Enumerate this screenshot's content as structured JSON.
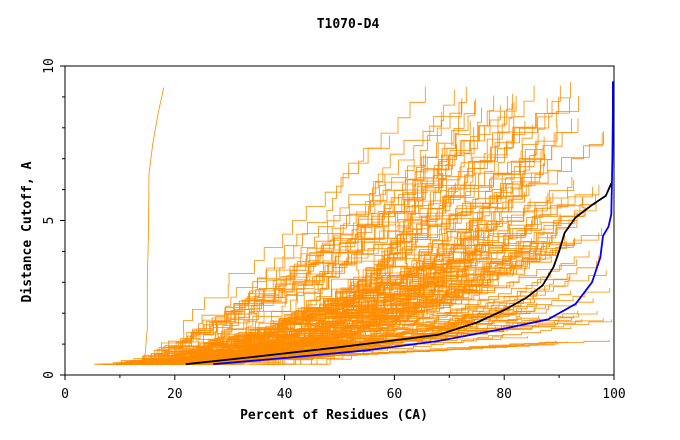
{
  "chart_data": {
    "type": "line",
    "title": "T1070-D4",
    "xlabel": "Percent of Residues (CA)",
    "ylabel": "Distance Cutoff, A",
    "xlim": [
      0,
      100
    ],
    "ylim": [
      0,
      10
    ],
    "x_ticks": [
      "0",
      "20",
      "40",
      "60",
      "80",
      "100"
    ],
    "y_ticks": [
      "0",
      "5",
      "10"
    ],
    "grid": false,
    "legend": "none",
    "colors": {
      "models": "#ff8c00",
      "highlight_blue": "#0000ff",
      "highlight_black": "#000000"
    },
    "series": [
      {
        "color": "#0000ff",
        "points": [
          [
            27,
            0.35
          ],
          [
            40,
            0.55
          ],
          [
            55,
            0.8
          ],
          [
            68,
            1.1
          ],
          [
            80,
            1.5
          ],
          [
            88,
            1.8
          ],
          [
            93,
            2.3
          ],
          [
            96,
            3.0
          ],
          [
            97.5,
            3.8
          ],
          [
            98,
            4.5
          ],
          [
            99,
            4.8
          ],
          [
            99.5,
            5.2
          ],
          [
            99.6,
            6
          ],
          [
            99.7,
            7
          ],
          [
            99.8,
            8.5
          ],
          [
            99.8,
            9.5
          ]
        ]
      },
      {
        "color": "#000000",
        "points": [
          [
            22,
            0.35
          ],
          [
            35,
            0.6
          ],
          [
            50,
            0.9
          ],
          [
            68,
            1.3
          ],
          [
            75,
            1.7
          ],
          [
            80,
            2.1
          ],
          [
            84,
            2.5
          ],
          [
            87,
            2.9
          ],
          [
            89,
            3.5
          ],
          [
            90,
            4.0
          ],
          [
            91,
            4.6
          ],
          [
            93,
            5.1
          ],
          [
            96,
            5.5
          ],
          [
            98.5,
            5.8
          ],
          [
            99.5,
            6.2
          ]
        ]
      }
    ]
  }
}
